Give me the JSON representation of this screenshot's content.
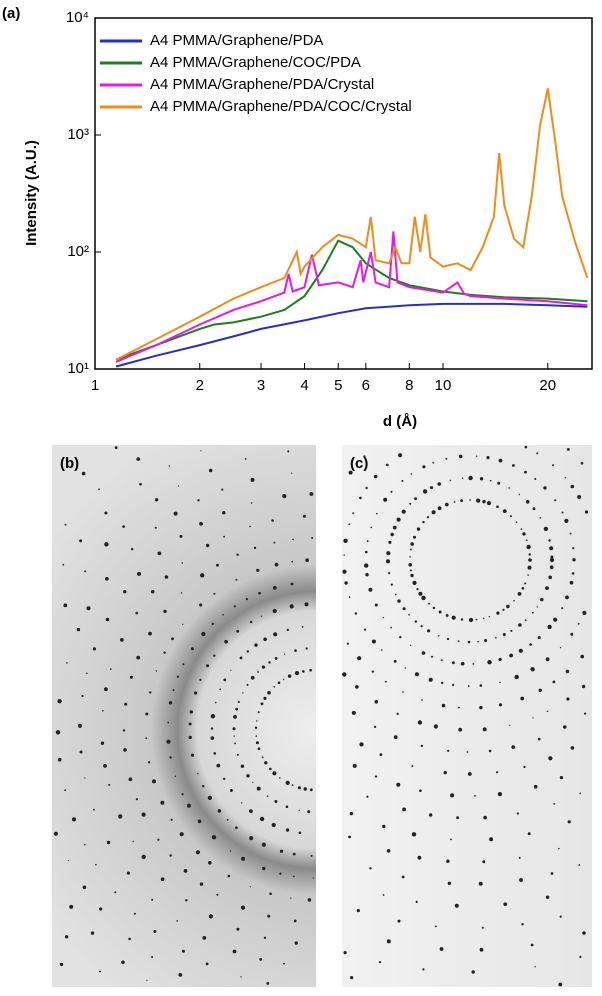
{
  "chart_data": {
    "type": "line",
    "panel_label": "(a)",
    "x_label": "d (Å)",
    "y_label": "Intensity (A.U.)",
    "log_x": true,
    "log_y": true,
    "xlim": [
      1,
      26.8
    ],
    "ylim": [
      10,
      10000
    ],
    "xticks": [
      1,
      2,
      3,
      4,
      5,
      6,
      8,
      10,
      20
    ],
    "yticks": [
      {
        "value": 10,
        "label": "10¹"
      },
      {
        "value": 100,
        "label": "10²"
      },
      {
        "value": 1000,
        "label": "10³"
      },
      {
        "value": 10000,
        "label": "10⁴"
      }
    ],
    "legend": "upper left",
    "series": [
      {
        "name": "A4 PMMA/Graphene/PDA",
        "color": "#2231c8",
        "x": [
          1.15,
          1.5,
          2,
          2.5,
          3,
          4,
          5,
          6,
          8,
          10,
          15,
          20,
          26
        ],
        "values": [
          10.5,
          13,
          16,
          19,
          22,
          26,
          30,
          33,
          35,
          36,
          36,
          35,
          34
        ]
      },
      {
        "name": "A4 PMMA/Graphene/COC/PDA",
        "color": "#1f7f1f",
        "x": [
          1.15,
          1.5,
          2,
          2.2,
          2.5,
          3,
          3.5,
          4,
          4.5,
          5,
          5.5,
          6,
          7,
          8,
          10,
          12,
          15,
          20,
          26
        ],
        "values": [
          12,
          16,
          22,
          24,
          25,
          28,
          32,
          42,
          70,
          125,
          110,
          80,
          60,
          52,
          46,
          43,
          41,
          40,
          38
        ]
      },
      {
        "name": "A4 PMMA/Graphene/PDA/Crystal",
        "color": "#e619e6",
        "x": [
          1.15,
          1.5,
          2,
          2.5,
          3,
          3.5,
          3.6,
          3.7,
          4,
          4.2,
          4.4,
          5,
          5.5,
          5.8,
          5.9,
          6.2,
          6.4,
          7,
          7.2,
          7.4,
          8,
          10,
          11,
          11.5,
          12,
          15,
          20,
          26
        ],
        "values": [
          11.5,
          16,
          24,
          32,
          38,
          45,
          65,
          46,
          50,
          95,
          52,
          55,
          50,
          85,
          55,
          100,
          55,
          50,
          150,
          55,
          50,
          45,
          55,
          44,
          42,
          40,
          38,
          35
        ]
      },
      {
        "name": "A4 PMMA/Graphene/PDA/COC/Crystal",
        "color": "#f08c1a",
        "x": [
          1.15,
          1.5,
          2,
          2.5,
          3,
          3.5,
          3.8,
          3.9,
          4,
          4.5,
          5,
          5.5,
          6,
          6.2,
          6.4,
          7,
          7.3,
          7.6,
          8,
          8.3,
          8.6,
          8.9,
          9.2,
          10,
          11,
          12,
          13,
          14,
          14.5,
          15,
          16,
          17,
          18,
          19,
          20,
          21,
          22,
          24,
          26
        ],
        "values": [
          12,
          18,
          28,
          40,
          50,
          60,
          100,
          65,
          75,
          110,
          140,
          130,
          110,
          200,
          85,
          80,
          110,
          80,
          80,
          200,
          100,
          210,
          90,
          75,
          80,
          70,
          110,
          200,
          700,
          250,
          130,
          110,
          300,
          1200,
          2500,
          900,
          300,
          120,
          60
        ]
      }
    ]
  },
  "images": [
    {
      "label": "(b)"
    },
    {
      "label": "(c)"
    }
  ]
}
